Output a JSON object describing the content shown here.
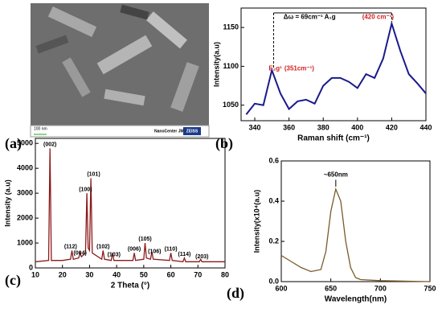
{
  "image": {
    "panel_label": "(a)",
    "scale_bar": "100 nm",
    "footer": "NanoCenter JMI",
    "logo": "ZEISS"
  },
  "chart_data": [
    {
      "type": "line",
      "panel_label": "(b)",
      "xlabel": "Raman shift (cm⁻¹)",
      "ylabel": "Intensity(a.u)",
      "x": [
        335,
        340,
        345,
        350,
        355,
        360,
        365,
        370,
        375,
        380,
        385,
        390,
        395,
        400,
        405,
        410,
        415,
        420,
        425,
        430,
        435,
        440
      ],
      "series": [
        {
          "color": "#1a1a8c",
          "values": [
            1038,
            1052,
            1050,
            1095,
            1065,
            1045,
            1055,
            1057,
            1052,
            1075,
            1085,
            1085,
            1080,
            1072,
            1090,
            1085,
            1110,
            1155,
            1120,
            1090,
            1078,
            1065
          ]
        }
      ],
      "xlim": [
        332,
        440
      ],
      "ylim": [
        1030,
        1175
      ],
      "xticks": [
        340,
        360,
        380,
        400,
        420,
        440
      ],
      "yticks": [
        1050,
        1100,
        1150
      ],
      "peak_positions": [
        351,
        420
      ],
      "annotations": [
        {
          "text": "Δω = 69cm⁻¹ A₁g",
          "x": 372,
          "y": 1163,
          "color": "#000000"
        },
        {
          "text": "(420 cm⁻¹)",
          "x": 412,
          "y": 1163,
          "color": "#d02020"
        },
        {
          "text": "E₂g¹",
          "x": 352,
          "y": 1097,
          "color": "#d02020"
        },
        {
          "text": "(351cm⁻¹)",
          "x": 366,
          "y": 1097,
          "color": "#d02020"
        }
      ]
    },
    {
      "type": "line",
      "panel_label": "(c)",
      "xlabel": "2 Theta (°)",
      "ylabel": "Intensity (a.u)",
      "x": [
        10,
        14.9,
        15.4,
        15.9,
        20,
        23,
        23.5,
        24,
        26,
        26.5,
        27,
        28.5,
        29,
        29.5,
        30,
        30.5,
        31,
        34.5,
        35,
        35.5,
        38,
        38.5,
        39,
        46,
        46.5,
        47,
        50,
        50.5,
        51,
        52.5,
        53,
        53.5,
        59.5,
        60,
        60.5,
        64.5,
        65,
        65.5,
        70.5,
        71,
        71.5,
        80
      ],
      "series": [
        {
          "color": "#8b1a1a",
          "values": [
            250,
            300,
            4800,
            300,
            300,
            350,
            700,
            350,
            400,
            600,
            450,
            600,
            3000,
            800,
            700,
            3600,
            600,
            350,
            700,
            350,
            300,
            600,
            300,
            300,
            600,
            300,
            350,
            1000,
            400,
            350,
            650,
            350,
            300,
            600,
            300,
            250,
            400,
            250,
            250,
            350,
            250,
            250
          ]
        }
      ],
      "xlim": [
        10,
        80
      ],
      "ylim": [
        0,
        5200
      ],
      "xticks": [
        10,
        20,
        30,
        40,
        50,
        60,
        70,
        80
      ],
      "yticks": [
        0,
        1000,
        2000,
        3000,
        4000,
        5000
      ],
      "annotations": [
        {
          "text": "(002)",
          "x": 15.4,
          "y": 4950
        },
        {
          "text": "(112)",
          "x": 23,
          "y": 850
        },
        {
          "text": "(004)",
          "x": 26.5,
          "y": 600
        },
        {
          "text": "(100)",
          "x": 28.5,
          "y": 3150
        },
        {
          "text": "(101)",
          "x": 31.5,
          "y": 3750
        },
        {
          "text": "(102)",
          "x": 35,
          "y": 850
        },
        {
          "text": "(103)",
          "x": 39,
          "y": 530
        },
        {
          "text": "(006)",
          "x": 46.5,
          "y": 750
        },
        {
          "text": "(105)",
          "x": 50.5,
          "y": 1150
        },
        {
          "text": "(106)",
          "x": 54,
          "y": 650
        },
        {
          "text": "(110)",
          "x": 60,
          "y": 750
        },
        {
          "text": "(114)",
          "x": 65,
          "y": 550
        },
        {
          "text": "(203)",
          "x": 71.5,
          "y": 450
        }
      ]
    },
    {
      "type": "line",
      "panel_label": "(d)",
      "xlabel": "Wavelength(nm)",
      "ylabel": "Intensity(x10⁴(a.u)",
      "x": [
        600,
        610,
        620,
        630,
        640,
        645,
        650,
        655,
        660,
        665,
        670,
        675,
        680,
        700,
        750
      ],
      "series": [
        {
          "color": "#7a5a2a",
          "values": [
            0.13,
            0.1,
            0.07,
            0.05,
            0.06,
            0.15,
            0.35,
            0.46,
            0.4,
            0.2,
            0.07,
            0.02,
            0.01,
            0.005,
            0
          ]
        }
      ],
      "xlim": [
        600,
        750
      ],
      "ylim": [
        0,
        0.6
      ],
      "xticks": [
        600,
        650,
        700,
        750
      ],
      "yticks": [
        {
          "value": 0,
          "label": "0.0"
        },
        0.2,
        0.4,
        0.6
      ],
      "annotations": [
        {
          "text": "~650nm",
          "x": 655,
          "y": 0.53
        }
      ]
    }
  ]
}
